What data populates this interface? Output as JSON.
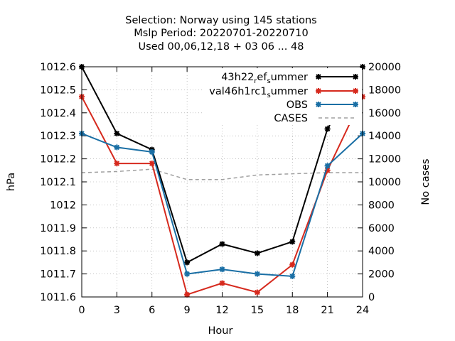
{
  "chart_data": {
    "type": "line",
    "title_lines": [
      "Selection: Norway using   145 stations",
      "Mslp   Period: 20220701-20220710",
      "Used  00,06,12,18  + 03 06 ... 48"
    ],
    "xlabel": "Hour",
    "ylabel": "hPa",
    "y2label": "No cases",
    "x": [
      0,
      3,
      6,
      9,
      12,
      15,
      18,
      21,
      24
    ],
    "xlim": [
      0,
      24
    ],
    "ylim": [
      1011.6,
      1012.6
    ],
    "y2lim": [
      0,
      20000
    ],
    "xticks": [
      "0",
      "3",
      "6",
      "9",
      "12",
      "15",
      "18",
      "21",
      "24"
    ],
    "yticks": [
      "1011.6",
      "1011.7",
      "1011.8",
      "1011.9",
      "1012",
      "1012.1",
      "1012.2",
      "1012.3",
      "1012.4",
      "1012.5",
      "1012.6"
    ],
    "y2ticks": [
      "0",
      "2000",
      "4000",
      "6000",
      "8000",
      "10000",
      "12000",
      "14000",
      "16000",
      "18000",
      "20000"
    ],
    "grid": true,
    "legend_position": "top-right",
    "series": [
      {
        "name_parts": [
          [
            "43h22",
            "base"
          ],
          [
            "r",
            "sub"
          ],
          [
            "ef",
            "base"
          ],
          [
            "s",
            "sub"
          ],
          [
            "ummer",
            "base"
          ]
        ],
        "axis": "y1",
        "color": "#000000",
        "values": [
          1012.6,
          1012.31,
          1012.24,
          1011.75,
          1011.83,
          1011.79,
          1011.84,
          1012.33,
          1012.6
        ]
      },
      {
        "name_parts": [
          [
            "val46h1rc1",
            "base"
          ],
          [
            "s",
            "sub"
          ],
          [
            "ummer",
            "base"
          ]
        ],
        "axis": "y1",
        "color": "#d62a1e",
        "values": [
          1012.47,
          1012.18,
          1012.18,
          1011.61,
          1011.66,
          1011.62,
          1011.74,
          1012.15,
          1012.47
        ]
      },
      {
        "name_parts": [
          [
            "OBS",
            "base"
          ]
        ],
        "axis": "y1",
        "color": "#1a6fa5",
        "values": [
          1012.31,
          1012.25,
          1012.23,
          1011.7,
          1011.72,
          1011.7,
          1011.69,
          1012.17,
          1012.31
        ]
      },
      {
        "name_parts": [
          [
            "CASES",
            "base"
          ]
        ],
        "axis": "y2",
        "color": "#a0a0a0",
        "dashed": true,
        "values": [
          10800,
          10900,
          11100,
          10200,
          10200,
          10600,
          10700,
          10800,
          10800
        ]
      }
    ]
  }
}
